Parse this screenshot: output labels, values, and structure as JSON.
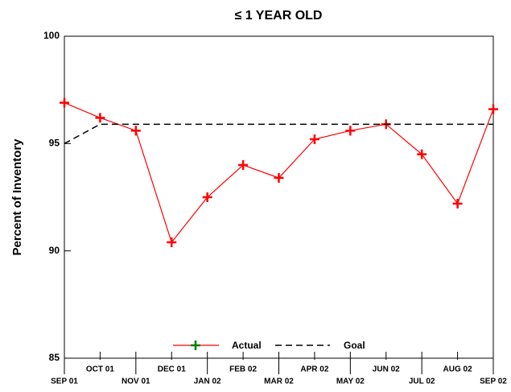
{
  "chart_data": {
    "type": "line",
    "title": "≤ 1 YEAR OLD",
    "y_label": "Percent of Inventory",
    "categories": [
      "SEP 01",
      "OCT 01",
      "NOV 01",
      "DEC 01",
      "JAN 02",
      "FEB 02",
      "MAR 02",
      "APR 02",
      "MAY 02",
      "JUN 02",
      "JUL 02",
      "AUG 02",
      "SEP 02"
    ],
    "series": [
      {
        "name": "Actual",
        "color": "#ff0000",
        "values": [
          96.9,
          96.2,
          95.6,
          90.4,
          92.5,
          94.0,
          93.4,
          95.2,
          95.6,
          95.9,
          94.5,
          92.2,
          96.6
        ]
      },
      {
        "name": "Goal",
        "color": "#000000",
        "values": [
          95.0,
          95.9,
          95.9,
          95.9,
          95.9,
          95.9,
          95.9,
          95.9,
          95.9,
          95.9,
          95.9,
          95.9,
          95.9
        ]
      }
    ],
    "ylim": [
      85,
      100
    ],
    "yticks": [
      85,
      90,
      95,
      100
    ]
  }
}
